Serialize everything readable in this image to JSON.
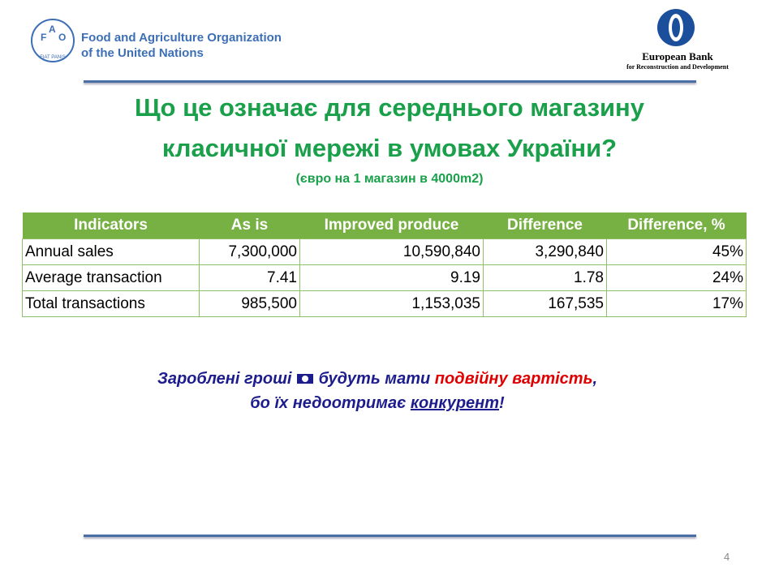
{
  "header": {
    "fao_logo": {
      "letters": [
        "F",
        "A",
        "O"
      ],
      "motto": "FIAT PANIS"
    },
    "fao_name": [
      "Food and Agriculture Organization",
      "of the United Nations"
    ],
    "ebrd_name": "European Bank",
    "ebrd_sub": "for Reconstruction and Development"
  },
  "title": [
    "Що це означає для середнього магазину",
    "класичної мережі в умовах України?"
  ],
  "subtitle": "(євро на 1 магазин в 4000m2)",
  "table": {
    "headers": [
      "Indicators",
      "As is",
      "Improved produce",
      "Difference",
      "Difference, %"
    ],
    "rows": [
      [
        "Annual sales",
        "7,300,000",
        "10,590,840",
        "3,290,840",
        "45%"
      ],
      [
        "Average transaction",
        "7.41",
        "9.19",
        "1.78",
        "24%"
      ],
      [
        "Total transactions",
        "985,500",
        "1,153,035",
        "167,535",
        "17%"
      ]
    ]
  },
  "message": {
    "line1": [
      "Заробленi грошi",
      "будуть мати",
      "подвійну вартість",
      ","
    ],
    "line2": [
      "бо їх недоотримає",
      "конкурент",
      "!"
    ]
  },
  "page_number": "4"
}
